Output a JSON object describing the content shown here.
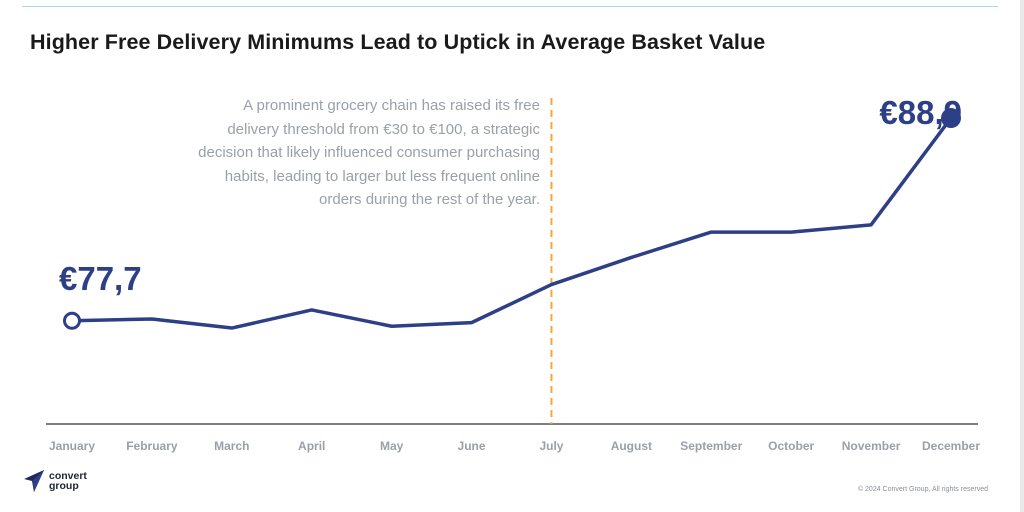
{
  "title": "Higher Free Delivery Minimums Lead to Uptick in Average Basket Value",
  "annotation": "A prominent grocery chain has raised its free delivery threshold from €30 to €100, a strategic decision that likely influenced consumer purchasing habits, leading to larger but less frequent online orders during the rest of the year.",
  "colors": {
    "line": "#2d3f86",
    "marker_line": "#f2a93b",
    "axis": "#333333",
    "tick_label": "#9aa0a8"
  },
  "logo": {
    "icon": "paper-plane-icon",
    "text": "convert\ngroup"
  },
  "copyright": "© 2024 Convert Group, All rights reserved",
  "chart_data": {
    "type": "line",
    "title": "Higher Free Delivery Minimums Lead to Uptick in Average Basket Value",
    "categories": [
      "January",
      "February",
      "March",
      "April",
      "May",
      "June",
      "July",
      "August",
      "September",
      "October",
      "November",
      "December"
    ],
    "series": [
      {
        "values": [
          77.7,
          77.8,
          77.3,
          78.3,
          77.4,
          77.6,
          79.7,
          81.2,
          82.6,
          82.6,
          83.0,
          88.9
        ]
      }
    ],
    "start_label": "€77,7",
    "end_label": "€88,9",
    "marker_category": "July",
    "ylim": [
      72,
      91
    ],
    "grid": false,
    "legend": "none"
  }
}
